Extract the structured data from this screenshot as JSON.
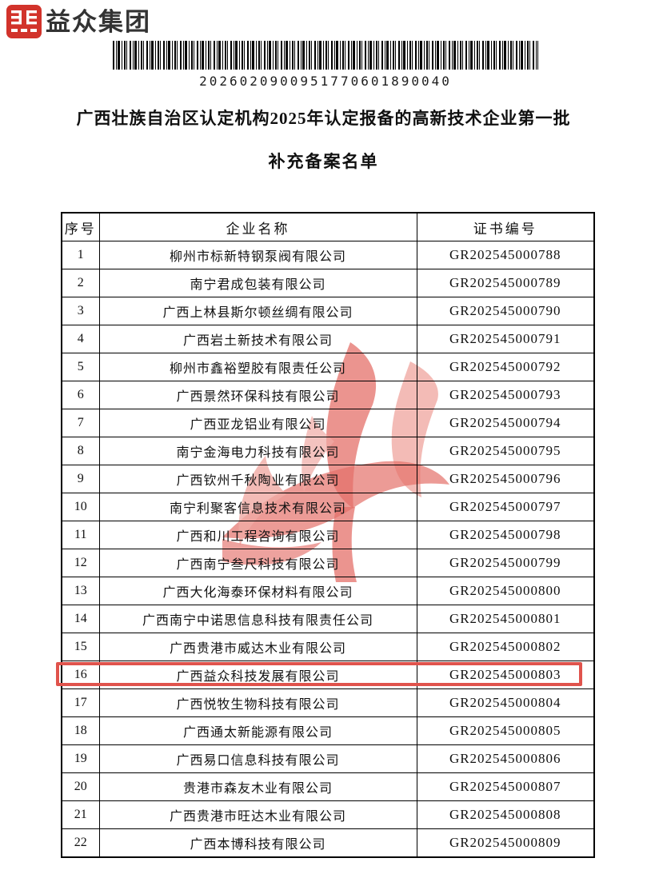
{
  "brand": {
    "name": "益众集团"
  },
  "barcode": {
    "number": "2026020900951770601890040"
  },
  "title": {
    "line1": "广西壮族自治区认定机构2025年认定报备的高新技术企业第一批",
    "line2": "补充备案名单"
  },
  "table": {
    "headers": [
      "序号",
      "企业名称",
      "证书编号"
    ],
    "highlighted_row": 16,
    "rows": [
      {
        "no": "1",
        "company": "柳州市标新特钢泵阀有限公司",
        "cert": "GR202545000788"
      },
      {
        "no": "2",
        "company": "南宁君成包装有限公司",
        "cert": "GR202545000789"
      },
      {
        "no": "3",
        "company": "广西上林县斯尔顿丝绸有限公司",
        "cert": "GR202545000790"
      },
      {
        "no": "4",
        "company": "广西岩土新技术有限公司",
        "cert": "GR202545000791"
      },
      {
        "no": "5",
        "company": "柳州市鑫裕塑胶有限责任公司",
        "cert": "GR202545000792"
      },
      {
        "no": "6",
        "company": "广西景然环保科技有限公司",
        "cert": "GR202545000793"
      },
      {
        "no": "7",
        "company": "广西亚龙铝业有限公司",
        "cert": "GR202545000794"
      },
      {
        "no": "8",
        "company": "南宁金海电力科技有限公司",
        "cert": "GR202545000795"
      },
      {
        "no": "9",
        "company": "广西钦州千秋陶业有限公司",
        "cert": "GR202545000796"
      },
      {
        "no": "10",
        "company": "南宁利聚客信息技术有限公司",
        "cert": "GR202545000797"
      },
      {
        "no": "11",
        "company": "广西和川工程咨询有限公司",
        "cert": "GR202545000798"
      },
      {
        "no": "12",
        "company": "广西南宁叁尺科技有限公司",
        "cert": "GR202545000799"
      },
      {
        "no": "13",
        "company": "广西大化海泰环保材料有限公司",
        "cert": "GR202545000800"
      },
      {
        "no": "14",
        "company": "广西南宁中诺思信息科技有限责任公司",
        "cert": "GR202545000801"
      },
      {
        "no": "15",
        "company": "广西贵港市威达木业有限公司",
        "cert": "GR202545000802"
      },
      {
        "no": "16",
        "company": "广西益众科技发展有限公司",
        "cert": "GR202545000803"
      },
      {
        "no": "17",
        "company": "广西悦牧生物科技有限公司",
        "cert": "GR202545000804"
      },
      {
        "no": "18",
        "company": "广西通太新能源有限公司",
        "cert": "GR202545000805"
      },
      {
        "no": "19",
        "company": "广西易口信息科技有限公司",
        "cert": "GR202545000806"
      },
      {
        "no": "20",
        "company": "贵港市森友木业有限公司",
        "cert": "GR202545000807"
      },
      {
        "no": "21",
        "company": "广西贵港市旺达木业有限公司",
        "cert": "GR202545000808"
      },
      {
        "no": "22",
        "company": "广西本博科技有限公司",
        "cert": "GR202545000809"
      }
    ]
  },
  "colors": {
    "logo_red": "#d2332b",
    "highlight_red": "#e0534c",
    "watermark_light": "#f0aaa4",
    "watermark_mid": "#e4706a",
    "text": "#111111"
  }
}
